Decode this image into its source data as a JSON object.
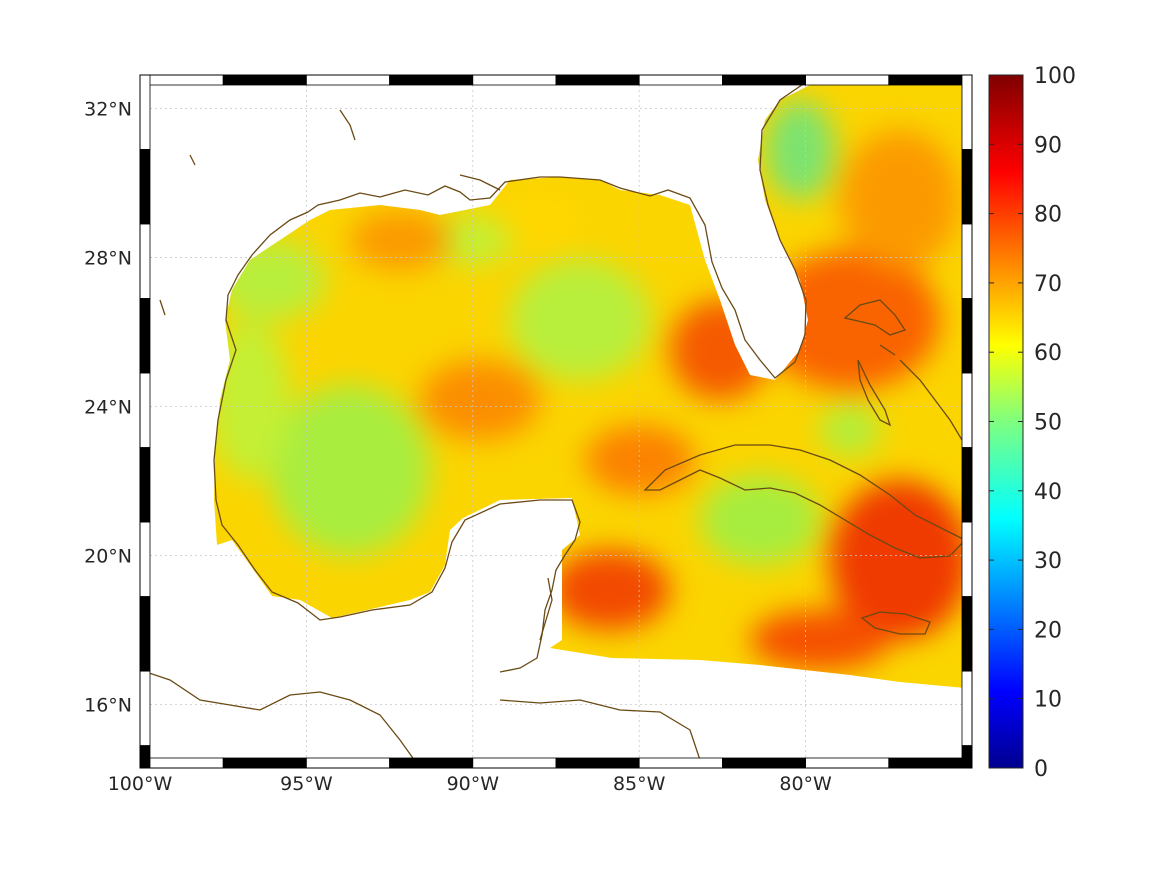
{
  "map": {
    "lon_range": [
      -100,
      -75
    ],
    "lat_range": [
      14.3,
      32.9
    ],
    "lon_ticks": [
      {
        "value": -100,
        "label": "100°W"
      },
      {
        "value": -95,
        "label": "95°W"
      },
      {
        "value": -90,
        "label": "90°W"
      },
      {
        "value": -85,
        "label": "85°W"
      },
      {
        "value": -80,
        "label": "80°W"
      }
    ],
    "lat_ticks": [
      {
        "value": 32,
        "label": "32°N"
      },
      {
        "value": 28,
        "label": "28°N"
      },
      {
        "value": 24,
        "label": "24°N"
      },
      {
        "value": 20,
        "label": "20°N"
      },
      {
        "value": 16,
        "label": "16°N"
      }
    ],
    "grid": true,
    "frame_style": "alternating black-and-white border",
    "coastline_color": "#6b4a14",
    "land_color": "#ffffff"
  },
  "colorbar": {
    "colormap": "jet",
    "range": [
      0,
      100
    ],
    "ticks": [
      "100",
      "90",
      "80",
      "70",
      "60",
      "50",
      "40",
      "30",
      "20",
      "10",
      "0"
    ]
  }
}
